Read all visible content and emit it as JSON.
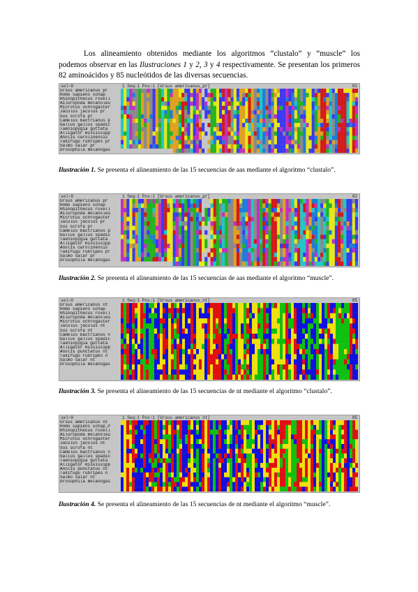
{
  "intro": {
    "text": "Los alineamiento obtenidos mediante los algoritmos “clustalo” y “muscle” los podemos observar en las ",
    "ref_italic": "Ilustraciones 1",
    "y1": " y ",
    "ref2": "2",
    "c1": ", ",
    "ref3": "3",
    "y2": " y ",
    "ref4": "4",
    "rest": " respectivamente. Se presentan los primeros 82 aminoácidos y 85 nucleótidos de las diversas secuencias."
  },
  "figures": [
    {
      "id": "fig1",
      "kind": "aa",
      "header_left": "sel~9",
      "header_mid": "1      Seq:1 Pos:1   [Ursus americanus_pr]",
      "header_right": "82",
      "names": [
        "Ursus americanus pr",
        "Homo sapiens schap",
        "Rhinopithecus roxell",
        "Ailuropoda melanoleu",
        "Microtus ochrogaster",
        "Jaculus jaculus pr",
        "Sus scrofa pr",
        "Camelus bactrianus p",
        "Gallus gallus spadic",
        "Taeniopygia guttata",
        "Alligator mississipp",
        "Anolis carolinensis",
        "Takifugu rubripes pr",
        "Salmo salar pr",
        "Drosophila melanogas"
      ],
      "caption_label": "Ilustración 1.",
      "caption_text": " Se presenta el alineamiento de las 15 secuencias de aas mediante el algoritmo “clustalo”."
    },
    {
      "id": "fig2",
      "kind": "aa",
      "header_left": "sel~9",
      "header_mid": "1      Seq:1 Pos:1   [Ursus americanus_pr]",
      "header_right": "82",
      "names": [
        "Ursus americanus pr",
        "Homo sapiens schap",
        "Rhinopithecus roxell",
        "Ailuropoda melanoleu",
        "Microtus ochrogaster",
        "Jaculus jaculus pr",
        "Sus scrofa pr",
        "Camelus bactrianus p",
        "Gallus gallus spadic",
        "Taeniopygia guttata",
        "Alligator mississipp",
        "Anolis carolinensis",
        "Takifugu rubripes pr",
        "Salmo salar pr",
        "Drosophila melanogas"
      ],
      "caption_label": "Ilustración 2.",
      "caption_text": " Se presenta el alineamiento de las 15 secuencias de aas mediante el algoritmo “muscle”."
    },
    {
      "id": "fig3",
      "kind": "nt",
      "header_left": "sel~0",
      "header_mid": "1      Seq:1 Pos:1   [Ursus americanus_nt]",
      "header_right": "85",
      "names": [
        "Ursus americanus nt",
        "Homo sapiens schap",
        "Rhinopithecus roxell",
        "Ailuropoda melanoleu",
        "Microtus ochrogaster",
        "Jaculus jaculus nt",
        "Sus scrofa nt",
        "Camelus bactrianus n",
        "Gallus gallus spadic",
        "Taeniopygia guttata",
        "Alligator mississipp",
        "Anolis punctatus nt",
        "Takifugu rubripes n",
        "Salmo salar nt",
        "Drosophila melanogas"
      ],
      "caption_label": "Ilustración 3.",
      "caption_text": " Se presenta el alineamiento de las 15 secuencias de nt mediante el algoritmo “clustalo”."
    },
    {
      "id": "fig4",
      "kind": "nt",
      "header_left": "sel~0",
      "header_mid": "1      Seq:1 Pos:1   [Ursus americanus nt]",
      "header_right": "85",
      "names": [
        "Ursus americanus nt",
        "Homo sapiens schap_P",
        "Rhinopithecus roxell",
        "Ailuropoda melanoleu",
        "Microtus ochrogaster",
        "Jaculus jaculus nt",
        "Sus scrofa nt",
        "Camelus bactrianus n",
        "Gallus gallus spadic",
        "Taeniopygia guttata",
        "Alligator mississipp",
        "Anolis punctatus nt",
        "Takifugu rubripes n",
        "Salmo salar nt",
        "Drosophila melanogas"
      ],
      "caption_label": "Ilustración 4.",
      "caption_text": " Se presenta el alineamiento de las 15 secuencias de nt mediante el algoritmo “muscle”."
    }
  ],
  "palette": {
    "aa": [
      "#1e7bd8",
      "#22b322",
      "#e8e81a",
      "#3a3af0",
      "#d11a1a",
      "#22c6c6",
      "#8a8a8a",
      "#e0a020",
      "#c030c0"
    ],
    "nt": [
      "#e01010",
      "#10c010",
      "#1010e0",
      "#f0e010"
    ],
    "gap": "#c6c6c6"
  }
}
